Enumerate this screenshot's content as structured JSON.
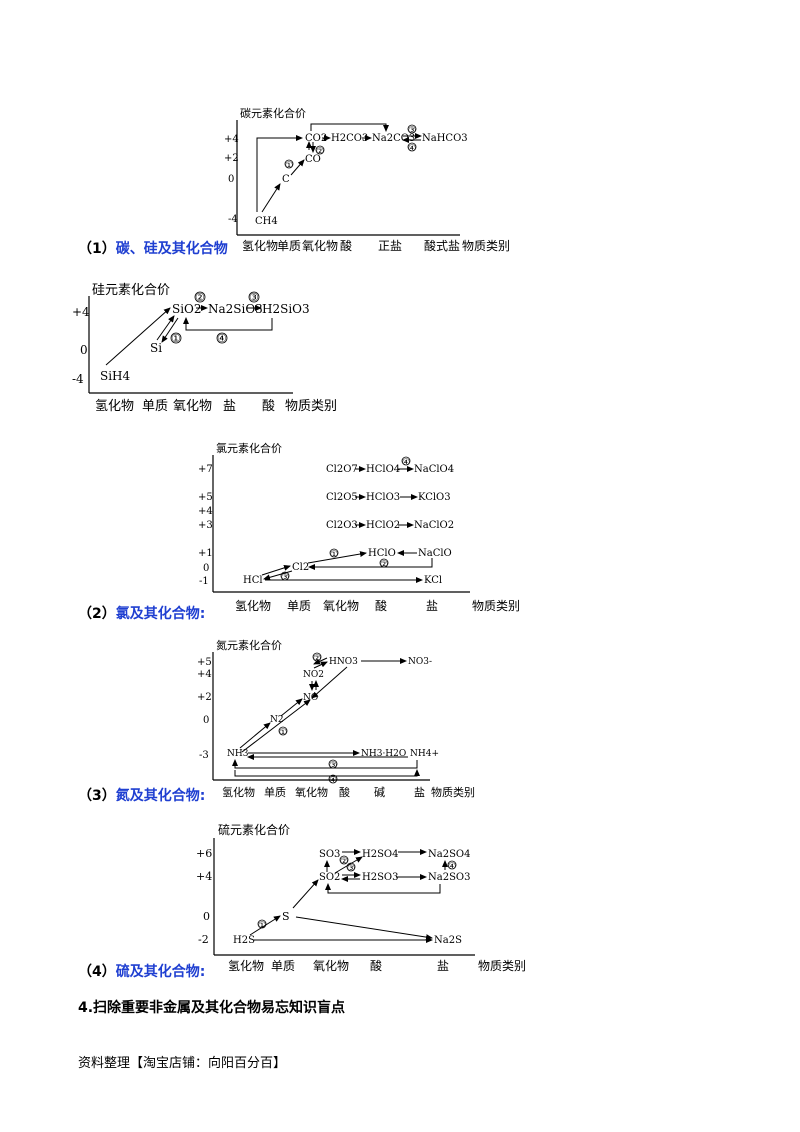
{
  "sections": {
    "carbon": {
      "label_num": "（1）",
      "label_text": "碳、硅及其化合物",
      "axis_title": "碳元素化合价",
      "y_ticks": [
        "+4",
        "+2",
        "0",
        "-4"
      ],
      "x_labels": [
        "氢化物",
        "单质",
        "氧化物",
        "酸",
        "正盐",
        "酸式盐",
        "物质类别"
      ],
      "species": [
        "CH4",
        "C",
        "CO",
        "CO2",
        "H2CO3",
        "Na2CO3",
        "NaHCO3"
      ],
      "marks": [
        "①",
        "②",
        "③",
        "④"
      ]
    },
    "silicon": {
      "axis_title": "硅元素化合价",
      "y_ticks": [
        "+4",
        "0",
        "-4"
      ],
      "x_labels": [
        "氢化物",
        "单质",
        "氧化物",
        "盐",
        "酸",
        "物质类别"
      ],
      "species": [
        "SiH4",
        "Si",
        "SiO2",
        "Na2SiO3",
        "H2SiO3"
      ],
      "marks": [
        "①",
        "②",
        "③",
        "④"
      ]
    },
    "chlorine": {
      "label_num": "（2）",
      "label_text": "氯及其化合物:",
      "axis_title": "氯元素化合价",
      "y_ticks": [
        "+7",
        "+5",
        "+4",
        "+3",
        "+1",
        "0",
        "-1"
      ],
      "x_labels": [
        "氢化物",
        "单质",
        "氧化物",
        "酸",
        "盐",
        "物质类别"
      ],
      "species": [
        "Cl2O7",
        "HClO4",
        "NaClO4",
        "Cl2O5",
        "HClO3",
        "KClO3",
        "Cl2O3",
        "HClO2",
        "NaClO2",
        "HClO",
        "NaClO",
        "Cl2",
        "HCl",
        "KCl"
      ],
      "marks": [
        "①",
        "②",
        "③",
        "④"
      ]
    },
    "nitrogen": {
      "label_num": "（3）",
      "label_text": "氮及其化合物:",
      "axis_title": "氮元素化合价",
      "y_ticks": [
        "+5",
        "+4",
        "+2",
        "0",
        "-3"
      ],
      "x_labels": [
        "氢化物",
        "单质",
        "氧化物",
        "酸",
        "碱",
        "盐",
        "物质类别"
      ],
      "species": [
        "HNO3",
        "NO3-",
        "NO2",
        "NO",
        "N2",
        "NH3",
        "NH3·H2O",
        "NH4+"
      ],
      "marks": [
        "①",
        "②",
        "③",
        "④"
      ]
    },
    "sulfur": {
      "label_num": "（4）",
      "label_text": "硫及其化合物:",
      "axis_title": "硫元素化合价",
      "y_ticks": [
        "+6",
        "+4",
        "0",
        "-2"
      ],
      "x_labels": [
        "氢化物",
        "单质",
        "氧化物",
        "酸",
        "盐",
        "物质类别"
      ],
      "species": [
        "SO3",
        "H2SO4",
        "Na2SO4",
        "SO2",
        "H2SO3",
        "Na2SO3",
        "S",
        "H2S",
        "Na2S"
      ],
      "marks": [
        "①",
        "②",
        "③",
        "④"
      ]
    }
  },
  "heading": "4.扫除重要非金属及其化合物易忘知识盲点",
  "footer": "资料整理【淘宝店铺：向阳百分百】"
}
